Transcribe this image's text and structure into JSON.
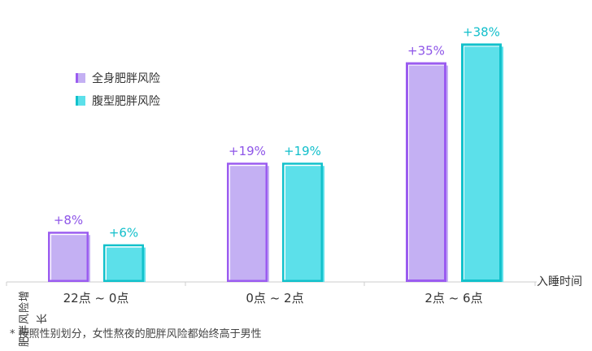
{
  "chart_data": {
    "type": "bar",
    "categories": [
      "22点 ~ 0点",
      "0点 ~ 2点",
      "2点 ~ 6点"
    ],
    "series": [
      {
        "name": "全身肥胖风险",
        "values": [
          8,
          19,
          35
        ],
        "labels": [
          "+8%",
          "+19%",
          "+35%"
        ],
        "color": "#C4B0F3",
        "edge_color": "#9B5CF0",
        "label_color": "#8E55E8"
      },
      {
        "name": "腹型肥胖风险",
        "values": [
          6,
          19,
          38
        ],
        "labels": [
          "+6%",
          "+19%",
          "+38%"
        ],
        "color": "#5CE0EA",
        "edge_color": "#12C1CB",
        "label_color": "#12BFCB"
      }
    ],
    "xlabel": "入睡时间",
    "ylabel": "肥胖风险增长",
    "ylim": [
      0,
      40
    ],
    "legend_position": "upper-left",
    "grid": false
  },
  "footnote": "* 按照性别划分，女性熬夜的肥胖风险都始终高于男性"
}
